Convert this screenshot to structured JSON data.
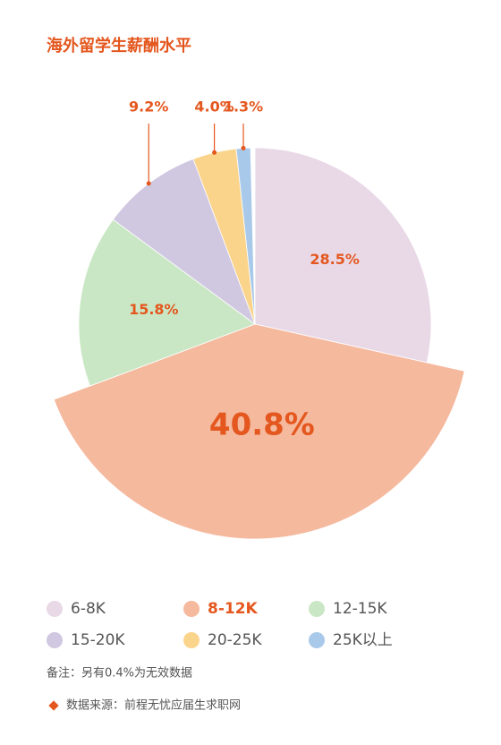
{
  "chart_data": {
    "type": "pie",
    "title": "海外留学生薪酬水平",
    "categories": [
      "6-8K",
      "8-12K",
      "12-15K",
      "15-20K",
      "20-25K",
      "25K以上"
    ],
    "values": [
      28.5,
      40.8,
      15.8,
      9.2,
      4.0,
      1.3
    ],
    "value_labels": [
      "28.5%",
      "40.8%",
      "15.8%",
      "9.2%",
      "4.0%",
      "1.3%"
    ],
    "colors": [
      "#e9d9e7",
      "#f5b99e",
      "#cae7c5",
      "#d0c7e1",
      "#fbd48c",
      "#a9c9ea"
    ],
    "exploded": "8-12K",
    "notes": [
      "备注：另有0.4%为无效数据",
      "数据来源：前程无忧应届生求职网"
    ]
  }
}
